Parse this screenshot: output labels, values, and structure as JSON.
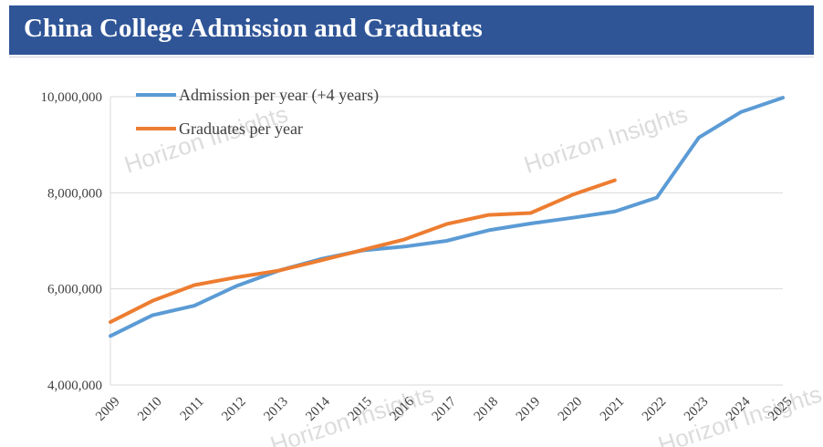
{
  "header": {
    "title": "China College Admission  and Graduates"
  },
  "watermark": "Horizon Insights",
  "chart_data": {
    "type": "line",
    "title": "China College Admission  and Graduates",
    "xlabel": "",
    "ylabel": "",
    "categories": [
      "2009",
      "2010",
      "2011",
      "2012",
      "2013",
      "2014",
      "2015",
      "2016",
      "2017",
      "2018",
      "2019",
      "2020",
      "2021",
      "2022",
      "2023",
      "2024",
      "2025"
    ],
    "ylim": [
      4000000,
      10000000
    ],
    "yticks": [
      4000000,
      6000000,
      8000000,
      10000000
    ],
    "ytick_labels": [
      "4,000,000",
      "6,000,000",
      "8,000,000",
      "10,000,000"
    ],
    "grid": "horizontal",
    "legend": "top-left",
    "series": [
      {
        "name": "Admission per year (+4 years)",
        "color": "#5b9bd5",
        "values": [
          5020000,
          5450000,
          5650000,
          6060000,
          6380000,
          6620000,
          6800000,
          6880000,
          7000000,
          7220000,
          7360000,
          7480000,
          7610000,
          7900000,
          9150000,
          9680000,
          9980000
        ]
      },
      {
        "name": "Graduates per year",
        "color": "#ed7d31",
        "values": [
          5310000,
          5750000,
          6080000,
          6240000,
          6380000,
          6590000,
          6810000,
          7030000,
          7350000,
          7540000,
          7580000,
          7960000,
          8260000,
          null,
          null,
          null,
          null
        ]
      }
    ]
  }
}
